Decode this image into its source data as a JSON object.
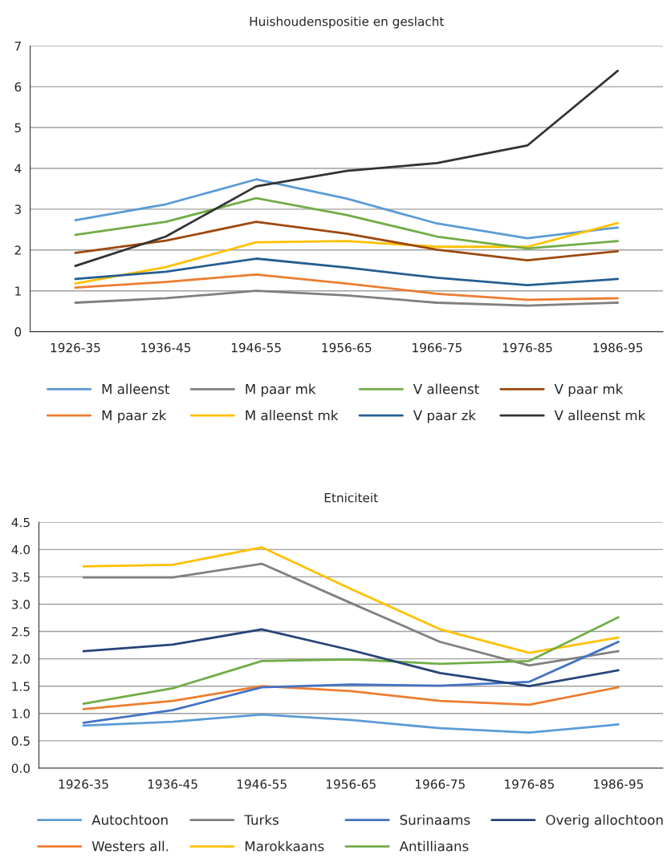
{
  "chart_data": [
    {
      "type": "line",
      "title": "Huishoudenspositie en geslacht",
      "categories": [
        "1926-35",
        "1936-45",
        "1946-55",
        "1956-65",
        "1966-75",
        "1976-85",
        "1986-95"
      ],
      "ylim": [
        0,
        7
      ],
      "yticks": [
        0,
        1,
        2,
        3,
        4,
        5,
        6,
        7
      ],
      "grid": "y",
      "legend": "bottom",
      "marker": "none",
      "line_style": "solid",
      "series": [
        {
          "name": "M alleenst",
          "color": "#5b9bd5",
          "values": [
            2.73,
            3.12,
            3.73,
            3.26,
            2.65,
            2.29,
            2.55
          ]
        },
        {
          "name": "M paar zk",
          "color": "#ed7d31",
          "values": [
            1.08,
            1.22,
            1.4,
            1.18,
            0.93,
            0.78,
            0.82
          ]
        },
        {
          "name": "M paar mk",
          "color": "#7f7f7f",
          "values": [
            0.71,
            0.82,
            1.0,
            0.89,
            0.71,
            0.64,
            0.71
          ]
        },
        {
          "name": "M alleenst mk",
          "color": "#ffc000",
          "values": [
            1.18,
            1.58,
            2.19,
            2.22,
            2.08,
            2.08,
            2.66
          ]
        },
        {
          "name": "V alleenst",
          "color": "#70ad47",
          "values": [
            2.37,
            2.69,
            3.27,
            2.86,
            2.33,
            2.04,
            2.22
          ]
        },
        {
          "name": "V paar zk",
          "color": "#255e91",
          "values": [
            1.29,
            1.47,
            1.79,
            1.57,
            1.32,
            1.14,
            1.29
          ]
        },
        {
          "name": "V paar mk",
          "color": "#9e480e",
          "values": [
            1.93,
            2.23,
            2.69,
            2.4,
            2.01,
            1.75,
            1.97
          ]
        },
        {
          "name": "V alleenst mk",
          "color": "#333333",
          "values": [
            1.61,
            2.33,
            3.56,
            3.94,
            4.13,
            4.56,
            6.39
          ]
        }
      ]
    },
    {
      "type": "line",
      "title": "Etniciteit",
      "categories": [
        "1926-35",
        "1936-45",
        "1946-55",
        "1956-65",
        "1966-75",
        "1976-85",
        "1986-95"
      ],
      "ylim": [
        0,
        4.5
      ],
      "yticks": [
        {
          "value": 0,
          "label": "0.0"
        },
        {
          "value": 0.5,
          "label": "0.5"
        },
        {
          "value": 1,
          "label": "1.0"
        },
        {
          "value": 1.5,
          "label": "1.5"
        },
        {
          "value": 2,
          "label": "2.0"
        },
        {
          "value": 2.5,
          "label": "2.5"
        },
        {
          "value": 3,
          "label": "3.0"
        },
        {
          "value": 3.5,
          "label": "3.5"
        },
        {
          "value": 4,
          "label": "4.0"
        },
        {
          "value": 4.5,
          "label": "4.5"
        }
      ],
      "grid": "y",
      "legend": "bottom",
      "marker": "none",
      "line_style": "solid",
      "series": [
        {
          "name": "Autochtoon",
          "color": "#5b9bd5",
          "values": [
            0.78,
            0.85,
            0.98,
            0.88,
            0.73,
            0.65,
            0.8
          ]
        },
        {
          "name": "Westers all.",
          "color": "#ed7d31",
          "values": [
            1.08,
            1.23,
            1.5,
            1.41,
            1.23,
            1.16,
            1.48
          ]
        },
        {
          "name": "Turks",
          "color": "#7f7f7f",
          "values": [
            3.49,
            3.49,
            3.74,
            3.02,
            2.31,
            1.88,
            2.14
          ]
        },
        {
          "name": "Marokkaans",
          "color": "#ffc000",
          "values": [
            3.69,
            3.72,
            4.04,
            3.28,
            2.54,
            2.11,
            2.39
          ]
        },
        {
          "name": "Surinaams",
          "color": "#4472c4",
          "values": [
            0.83,
            1.06,
            1.48,
            1.53,
            1.51,
            1.58,
            2.31
          ]
        },
        {
          "name": "Antilliaans",
          "color": "#70ad47",
          "values": [
            1.18,
            1.46,
            1.96,
            1.99,
            1.91,
            1.96,
            2.76
          ]
        },
        {
          "name": "Overig allochtoon",
          "color": "#264478",
          "values": [
            2.14,
            2.26,
            2.54,
            2.16,
            1.74,
            1.5,
            1.79
          ]
        }
      ]
    }
  ]
}
